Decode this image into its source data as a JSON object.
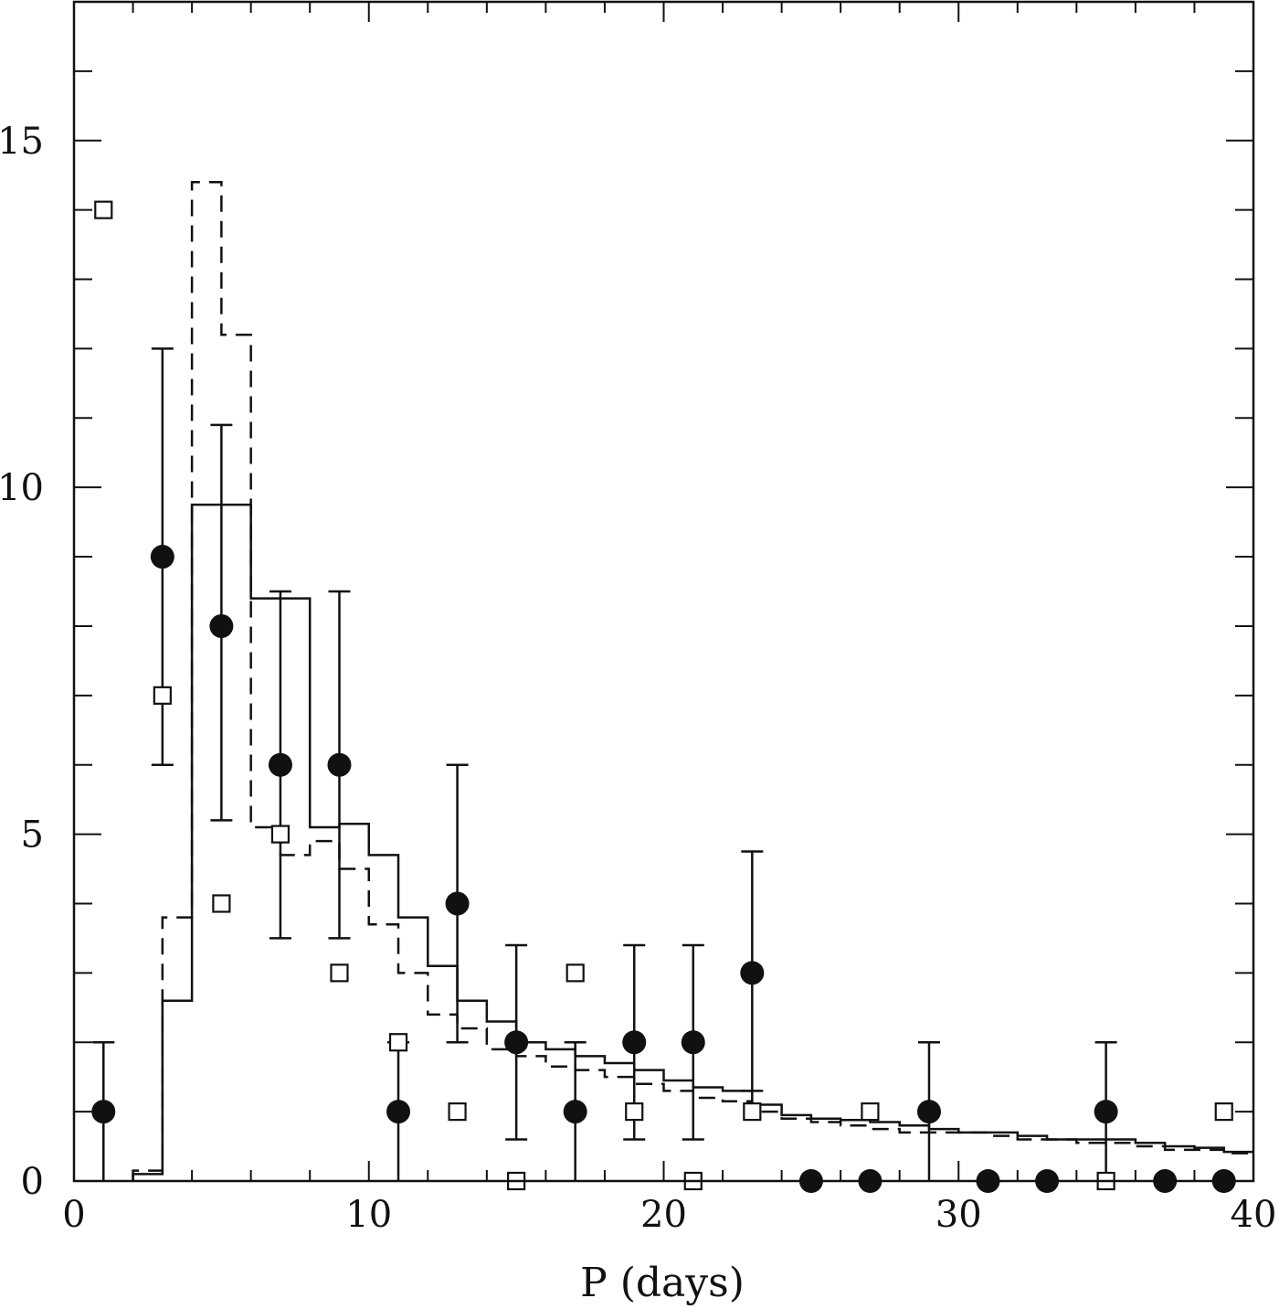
{
  "chart_data": {
    "type": "scatter",
    "xlabel": "P (days)",
    "ylabel": "",
    "xlim": [
      0,
      40
    ],
    "ylim": [
      0,
      17
    ],
    "grid": false,
    "legend": "none",
    "x_ticks": [
      0,
      10,
      20,
      30,
      40
    ],
    "x_tick_labels": [
      "0",
      "10",
      "20",
      "30",
      "40"
    ],
    "y_ticks": [
      0,
      5,
      10,
      15
    ],
    "y_tick_labels": [
      "0",
      "5",
      "10",
      "15"
    ],
    "series": [
      {
        "kind": "points_filled_with_errorbars",
        "x": [
          1,
          3,
          5,
          7,
          9,
          11,
          13,
          15,
          17,
          19,
          21,
          23,
          25,
          27,
          29,
          31,
          33,
          35,
          37,
          39
        ],
        "y": [
          1,
          9,
          8,
          6,
          6,
          1,
          4,
          2,
          1,
          2,
          2,
          3,
          0,
          0,
          1,
          0,
          0,
          1,
          0,
          0
        ],
        "err_low": [
          1,
          3,
          2.8,
          2.5,
          2.5,
          1,
          2,
          1.4,
          1,
          1.4,
          1.4,
          1.7,
          0,
          0,
          1,
          0,
          0,
          1,
          0,
          0
        ],
        "err_high": [
          1,
          3,
          2.9,
          2.5,
          2.5,
          1,
          2,
          1.4,
          1,
          1.4,
          1.4,
          1.75,
          0,
          0,
          1,
          0,
          0,
          1,
          0,
          0
        ]
      },
      {
        "kind": "points_open_squares",
        "x": [
          1,
          3,
          5,
          7,
          9,
          11,
          13,
          15,
          17,
          19,
          21,
          23,
          27,
          35,
          39
        ],
        "y": [
          14,
          7,
          4,
          5,
          3,
          2,
          1,
          0,
          3,
          1,
          0,
          1,
          1,
          0,
          1
        ]
      },
      {
        "kind": "histogram_solid",
        "bin_edges": [
          2,
          3,
          4,
          6,
          8,
          9,
          10,
          11,
          12,
          13,
          14,
          15,
          16,
          17,
          18,
          19,
          20,
          21,
          22,
          23,
          24,
          25,
          26,
          27,
          28,
          29,
          30,
          31,
          32,
          33,
          34,
          35,
          36,
          37,
          38,
          39,
          40
        ],
        "values": [
          0.1,
          2.6,
          9.75,
          8.4,
          5.1,
          5.15,
          4.7,
          3.8,
          3.1,
          2.6,
          2.3,
          2.0,
          1.9,
          1.8,
          1.7,
          1.6,
          1.45,
          1.35,
          1.3,
          1.1,
          0.95,
          0.9,
          0.88,
          0.85,
          0.8,
          0.75,
          0.7,
          0.7,
          0.65,
          0.6,
          0.6,
          0.6,
          0.55,
          0.5,
          0.48,
          0.42
        ]
      },
      {
        "kind": "histogram_dashed",
        "bin_edges": [
          2,
          3,
          4,
          5,
          6,
          7,
          8,
          9,
          10,
          11,
          12,
          13,
          14,
          15,
          16,
          17,
          18,
          19,
          20,
          21,
          22,
          23,
          24,
          25,
          26,
          27,
          28,
          29,
          30,
          31,
          32,
          33,
          34,
          35,
          36,
          37,
          38,
          39,
          40
        ],
        "values": [
          0.15,
          3.8,
          14.4,
          12.2,
          5.1,
          4.7,
          4.9,
          4.5,
          3.7,
          3.0,
          2.4,
          2.2,
          1.9,
          1.8,
          1.65,
          1.6,
          1.5,
          1.4,
          1.3,
          1.2,
          1.15,
          1.0,
          0.9,
          0.85,
          0.8,
          0.75,
          0.7,
          0.7,
          0.7,
          0.65,
          0.6,
          0.6,
          0.55,
          0.55,
          0.5,
          0.45,
          0.45,
          0.4
        ]
      }
    ]
  }
}
